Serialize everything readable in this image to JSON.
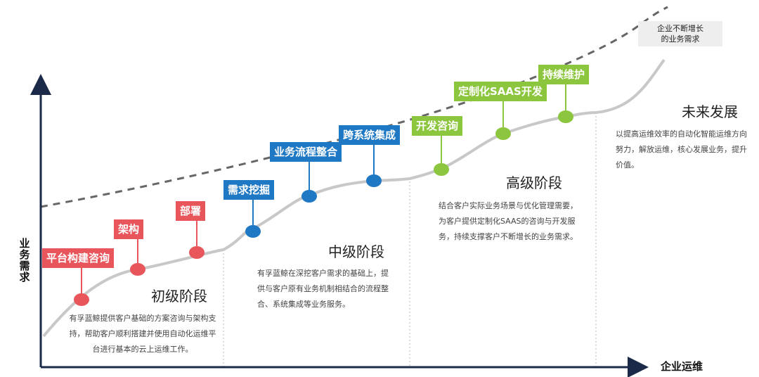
{
  "axes": {
    "y_label": "业务需求",
    "x_label": "企业运维"
  },
  "top_note": {
    "line1": "企业不断增长",
    "line2": "的业务需求"
  },
  "stages": [
    {
      "title": "初级阶段",
      "description": "有孚蓝鲸提供客户基础的方案咨询与架构支持，帮助客户顺利搭建并使用自动化运维平台进行基本的云上运维工作。"
    },
    {
      "title": "中级阶段",
      "description": "有孚蓝鲸在深挖客户需求的基础上，提供与客户原有业务机制相结合的流程整合、系统集成等业务服务。"
    },
    {
      "title": "高级阶段",
      "description": "结合客户实际业务场景与优化管理需要，为客户提供定制化SAAS的咨询与开发服务，持续支撑客户不断增长的业务需求。"
    },
    {
      "title": "未来发展",
      "description": "以提高运维效率的自动化智能运维方向努力，解放运维，核心发展业务，提升价值。"
    }
  ],
  "milestones": [
    {
      "label": "平台构建咨询",
      "color": "#e8555b"
    },
    {
      "label": "架构",
      "color": "#e8555b"
    },
    {
      "label": "部署",
      "color": "#e8555b"
    },
    {
      "label": "需求挖掘",
      "color": "#1f78c3"
    },
    {
      "label": "业务流程整合",
      "color": "#1f78c3"
    },
    {
      "label": "跨系统集成",
      "color": "#1f78c3"
    },
    {
      "label": "开发咨询",
      "color": "#8cc63f"
    },
    {
      "label": "定制化SAAS开发",
      "color": "#8cc63f"
    },
    {
      "label": "持续维护",
      "color": "#8cc63f"
    }
  ],
  "colors": {
    "primary_stage": "#e8555b",
    "middle_stage": "#1f78c3",
    "advanced_stage": "#8cc63f",
    "curve": "#c8c8c8",
    "dashed": "#666666",
    "axis": "#1c2a4a"
  }
}
